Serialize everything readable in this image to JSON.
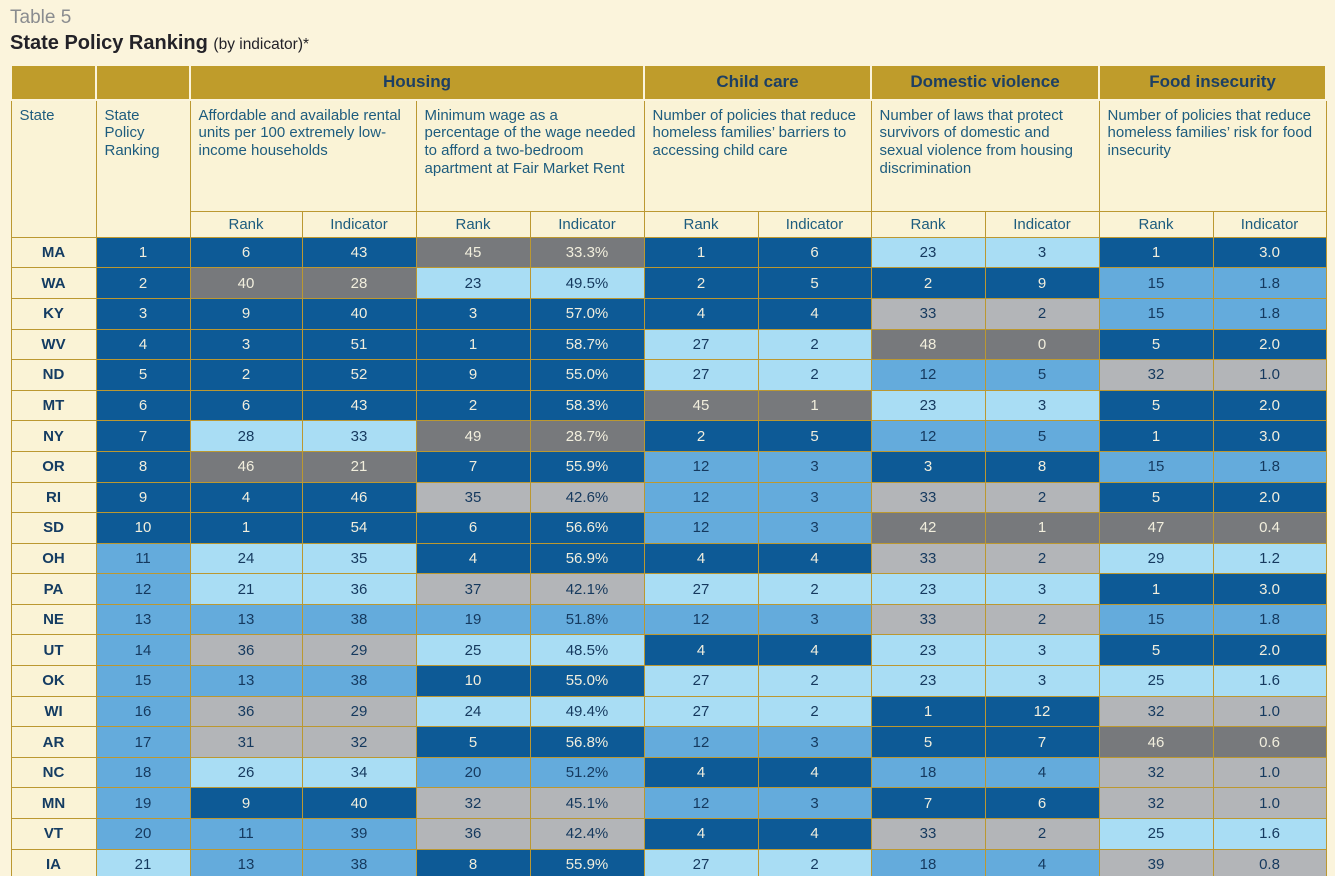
{
  "header": {
    "eyebrow": "Table 5",
    "title": "State Policy Ranking",
    "title_suffix": "(by indicator)*"
  },
  "colors": {
    "page_background": "#fbf4dc",
    "band_gold": "#bf9c2b",
    "grid_gold": "#bb9831",
    "header_cream": "#faf3d6",
    "dark_blue": "#0d5a96",
    "medium_blue": "#64abdc",
    "light_blue": "#a9ddf4",
    "light_gray": "#b3b5b8",
    "dark_gray": "#77797c",
    "text_on_dark": "#f1eedd",
    "text_on_light": "#15395e",
    "header_text_teal": "#1d5c7e",
    "header_text_navy": "#1d3f63"
  },
  "chart_data": {
    "type": "table",
    "title": "State Policy Ranking (by indicator)*",
    "column_groups": [
      {
        "label": "Housing",
        "span": 4
      },
      {
        "label": "Child care",
        "span": 2
      },
      {
        "label": "Domestic violence",
        "span": 2
      },
      {
        "label": "Food insecurity",
        "span": 2
      }
    ],
    "state_header": "State",
    "ranking_header": "State Policy Ranking",
    "indicators": [
      "Affordable and available rental units per 100 extremely low-income households",
      "Minimum wage as a percentage of the wage needed to afford a two-bedroom apartment at Fair Market Rent",
      "Number of policies that reduce homeless families’ barriers to accessing child care",
      "Number of laws that protect survivors of domestic and sexual violence from housing discrimination",
      "Number of policies that reduce homeless families’ risk for food insecurity"
    ],
    "subheaders": {
      "rank": "Rank",
      "indicator": "Indicator"
    },
    "column_ids": [
      "state-policy-ranking-cell",
      "housing-units-rank-cell",
      "housing-units-indicator-cell",
      "housing-wage-rank-cell",
      "housing-wage-indicator-cell",
      "childcare-rank-cell",
      "childcare-indicator-cell",
      "domestic-violence-rank-cell",
      "domestic-violence-indicator-cell",
      "food-insecurity-rank-cell",
      "food-insecurity-indicator-cell"
    ],
    "color_key": {
      "db": "#0d5a96",
      "mb": "#64abdc",
      "lb": "#a9ddf4",
      "lg": "#b3b5b8",
      "dg": "#77797c"
    },
    "rows": [
      {
        "state": "MA",
        "cells": [
          [
            "1",
            "db"
          ],
          [
            "6",
            "db"
          ],
          [
            "43",
            "db"
          ],
          [
            "45",
            "dg"
          ],
          [
            "33.3%",
            "dg"
          ],
          [
            "1",
            "db"
          ],
          [
            "6",
            "db"
          ],
          [
            "23",
            "lb"
          ],
          [
            "3",
            "lb"
          ],
          [
            "1",
            "db"
          ],
          [
            "3.0",
            "db"
          ]
        ]
      },
      {
        "state": "WA",
        "cells": [
          [
            "2",
            "db"
          ],
          [
            "40",
            "dg"
          ],
          [
            "28",
            "dg"
          ],
          [
            "23",
            "lb"
          ],
          [
            "49.5%",
            "lb"
          ],
          [
            "2",
            "db"
          ],
          [
            "5",
            "db"
          ],
          [
            "2",
            "db"
          ],
          [
            "9",
            "db"
          ],
          [
            "15",
            "mb"
          ],
          [
            "1.8",
            "mb"
          ]
        ]
      },
      {
        "state": "KY",
        "cells": [
          [
            "3",
            "db"
          ],
          [
            "9",
            "db"
          ],
          [
            "40",
            "db"
          ],
          [
            "3",
            "db"
          ],
          [
            "57.0%",
            "db"
          ],
          [
            "4",
            "db"
          ],
          [
            "4",
            "db"
          ],
          [
            "33",
            "lg"
          ],
          [
            "2",
            "lg"
          ],
          [
            "15",
            "mb"
          ],
          [
            "1.8",
            "mb"
          ]
        ]
      },
      {
        "state": "WV",
        "cells": [
          [
            "4",
            "db"
          ],
          [
            "3",
            "db"
          ],
          [
            "51",
            "db"
          ],
          [
            "1",
            "db"
          ],
          [
            "58.7%",
            "db"
          ],
          [
            "27",
            "lb"
          ],
          [
            "2",
            "lb"
          ],
          [
            "48",
            "dg"
          ],
          [
            "0",
            "dg"
          ],
          [
            "5",
            "db"
          ],
          [
            "2.0",
            "db"
          ]
        ]
      },
      {
        "state": "ND",
        "cells": [
          [
            "5",
            "db"
          ],
          [
            "2",
            "db"
          ],
          [
            "52",
            "db"
          ],
          [
            "9",
            "db"
          ],
          [
            "55.0%",
            "db"
          ],
          [
            "27",
            "lb"
          ],
          [
            "2",
            "lb"
          ],
          [
            "12",
            "mb"
          ],
          [
            "5",
            "mb"
          ],
          [
            "32",
            "lg"
          ],
          [
            "1.0",
            "lg"
          ]
        ]
      },
      {
        "state": "MT",
        "cells": [
          [
            "6",
            "db"
          ],
          [
            "6",
            "db"
          ],
          [
            "43",
            "db"
          ],
          [
            "2",
            "db"
          ],
          [
            "58.3%",
            "db"
          ],
          [
            "45",
            "dg"
          ],
          [
            "1",
            "dg"
          ],
          [
            "23",
            "lb"
          ],
          [
            "3",
            "lb"
          ],
          [
            "5",
            "db"
          ],
          [
            "2.0",
            "db"
          ]
        ]
      },
      {
        "state": "NY",
        "cells": [
          [
            "7",
            "db"
          ],
          [
            "28",
            "lb"
          ],
          [
            "33",
            "lb"
          ],
          [
            "49",
            "dg"
          ],
          [
            "28.7%",
            "dg"
          ],
          [
            "2",
            "db"
          ],
          [
            "5",
            "db"
          ],
          [
            "12",
            "mb"
          ],
          [
            "5",
            "mb"
          ],
          [
            "1",
            "db"
          ],
          [
            "3.0",
            "db"
          ]
        ]
      },
      {
        "state": "OR",
        "cells": [
          [
            "8",
            "db"
          ],
          [
            "46",
            "dg"
          ],
          [
            "21",
            "dg"
          ],
          [
            "7",
            "db"
          ],
          [
            "55.9%",
            "db"
          ],
          [
            "12",
            "mb"
          ],
          [
            "3",
            "mb"
          ],
          [
            "3",
            "db"
          ],
          [
            "8",
            "db"
          ],
          [
            "15",
            "mb"
          ],
          [
            "1.8",
            "mb"
          ]
        ]
      },
      {
        "state": "RI",
        "cells": [
          [
            "9",
            "db"
          ],
          [
            "4",
            "db"
          ],
          [
            "46",
            "db"
          ],
          [
            "35",
            "lg"
          ],
          [
            "42.6%",
            "lg"
          ],
          [
            "12",
            "mb"
          ],
          [
            "3",
            "mb"
          ],
          [
            "33",
            "lg"
          ],
          [
            "2",
            "lg"
          ],
          [
            "5",
            "db"
          ],
          [
            "2.0",
            "db"
          ]
        ]
      },
      {
        "state": "SD",
        "cells": [
          [
            "10",
            "db"
          ],
          [
            "1",
            "db"
          ],
          [
            "54",
            "db"
          ],
          [
            "6",
            "db"
          ],
          [
            "56.6%",
            "db"
          ],
          [
            "12",
            "mb"
          ],
          [
            "3",
            "mb"
          ],
          [
            "42",
            "dg"
          ],
          [
            "1",
            "dg"
          ],
          [
            "47",
            "dg"
          ],
          [
            "0.4",
            "dg"
          ]
        ]
      },
      {
        "state": "OH",
        "cells": [
          [
            "11",
            "mb"
          ],
          [
            "24",
            "lb"
          ],
          [
            "35",
            "lb"
          ],
          [
            "4",
            "db"
          ],
          [
            "56.9%",
            "db"
          ],
          [
            "4",
            "db"
          ],
          [
            "4",
            "db"
          ],
          [
            "33",
            "lg"
          ],
          [
            "2",
            "lg"
          ],
          [
            "29",
            "lb"
          ],
          [
            "1.2",
            "lb"
          ]
        ]
      },
      {
        "state": "PA",
        "cells": [
          [
            "12",
            "mb"
          ],
          [
            "21",
            "lb"
          ],
          [
            "36",
            "lb"
          ],
          [
            "37",
            "lg"
          ],
          [
            "42.1%",
            "lg"
          ],
          [
            "27",
            "lb"
          ],
          [
            "2",
            "lb"
          ],
          [
            "23",
            "lb"
          ],
          [
            "3",
            "lb"
          ],
          [
            "1",
            "db"
          ],
          [
            "3.0",
            "db"
          ]
        ]
      },
      {
        "state": "NE",
        "cells": [
          [
            "13",
            "mb"
          ],
          [
            "13",
            "mb"
          ],
          [
            "38",
            "mb"
          ],
          [
            "19",
            "mb"
          ],
          [
            "51.8%",
            "mb"
          ],
          [
            "12",
            "mb"
          ],
          [
            "3",
            "mb"
          ],
          [
            "33",
            "lg"
          ],
          [
            "2",
            "lg"
          ],
          [
            "15",
            "mb"
          ],
          [
            "1.8",
            "mb"
          ]
        ]
      },
      {
        "state": "UT",
        "cells": [
          [
            "14",
            "mb"
          ],
          [
            "36",
            "lg"
          ],
          [
            "29",
            "lg"
          ],
          [
            "25",
            "lb"
          ],
          [
            "48.5%",
            "lb"
          ],
          [
            "4",
            "db"
          ],
          [
            "4",
            "db"
          ],
          [
            "23",
            "lb"
          ],
          [
            "3",
            "lb"
          ],
          [
            "5",
            "db"
          ],
          [
            "2.0",
            "db"
          ]
        ]
      },
      {
        "state": "OK",
        "cells": [
          [
            "15",
            "mb"
          ],
          [
            "13",
            "mb"
          ],
          [
            "38",
            "mb"
          ],
          [
            "10",
            "db"
          ],
          [
            "55.0%",
            "db"
          ],
          [
            "27",
            "lb"
          ],
          [
            "2",
            "lb"
          ],
          [
            "23",
            "lb"
          ],
          [
            "3",
            "lb"
          ],
          [
            "25",
            "lb"
          ],
          [
            "1.6",
            "lb"
          ]
        ]
      },
      {
        "state": "WI",
        "cells": [
          [
            "16",
            "mb"
          ],
          [
            "36",
            "lg"
          ],
          [
            "29",
            "lg"
          ],
          [
            "24",
            "lb"
          ],
          [
            "49.4%",
            "lb"
          ],
          [
            "27",
            "lb"
          ],
          [
            "2",
            "lb"
          ],
          [
            "1",
            "db"
          ],
          [
            "12",
            "db"
          ],
          [
            "32",
            "lg"
          ],
          [
            "1.0",
            "lg"
          ]
        ]
      },
      {
        "state": "AR",
        "cells": [
          [
            "17",
            "mb"
          ],
          [
            "31",
            "lg"
          ],
          [
            "32",
            "lg"
          ],
          [
            "5",
            "db"
          ],
          [
            "56.8%",
            "db"
          ],
          [
            "12",
            "mb"
          ],
          [
            "3",
            "mb"
          ],
          [
            "5",
            "db"
          ],
          [
            "7",
            "db"
          ],
          [
            "46",
            "dg"
          ],
          [
            "0.6",
            "dg"
          ]
        ]
      },
      {
        "state": "NC",
        "cells": [
          [
            "18",
            "mb"
          ],
          [
            "26",
            "lb"
          ],
          [
            "34",
            "lb"
          ],
          [
            "20",
            "mb"
          ],
          [
            "51.2%",
            "mb"
          ],
          [
            "4",
            "db"
          ],
          [
            "4",
            "db"
          ],
          [
            "18",
            "mb"
          ],
          [
            "4",
            "mb"
          ],
          [
            "32",
            "lg"
          ],
          [
            "1.0",
            "lg"
          ]
        ]
      },
      {
        "state": "MN",
        "cells": [
          [
            "19",
            "mb"
          ],
          [
            "9",
            "db"
          ],
          [
            "40",
            "db"
          ],
          [
            "32",
            "lg"
          ],
          [
            "45.1%",
            "lg"
          ],
          [
            "12",
            "mb"
          ],
          [
            "3",
            "mb"
          ],
          [
            "7",
            "db"
          ],
          [
            "6",
            "db"
          ],
          [
            "32",
            "lg"
          ],
          [
            "1.0",
            "lg"
          ]
        ]
      },
      {
        "state": "VT",
        "cells": [
          [
            "20",
            "mb"
          ],
          [
            "11",
            "mb"
          ],
          [
            "39",
            "mb"
          ],
          [
            "36",
            "lg"
          ],
          [
            "42.4%",
            "lg"
          ],
          [
            "4",
            "db"
          ],
          [
            "4",
            "db"
          ],
          [
            "33",
            "lg"
          ],
          [
            "2",
            "lg"
          ],
          [
            "25",
            "lb"
          ],
          [
            "1.6",
            "lb"
          ]
        ]
      },
      {
        "state": "IA",
        "cells": [
          [
            "21",
            "lb"
          ],
          [
            "13",
            "mb"
          ],
          [
            "38",
            "mb"
          ],
          [
            "8",
            "db"
          ],
          [
            "55.9%",
            "db"
          ],
          [
            "27",
            "lb"
          ],
          [
            "2",
            "lb"
          ],
          [
            "18",
            "mb"
          ],
          [
            "4",
            "mb"
          ],
          [
            "39",
            "lg"
          ],
          [
            "0.8",
            "lg"
          ]
        ]
      }
    ]
  }
}
